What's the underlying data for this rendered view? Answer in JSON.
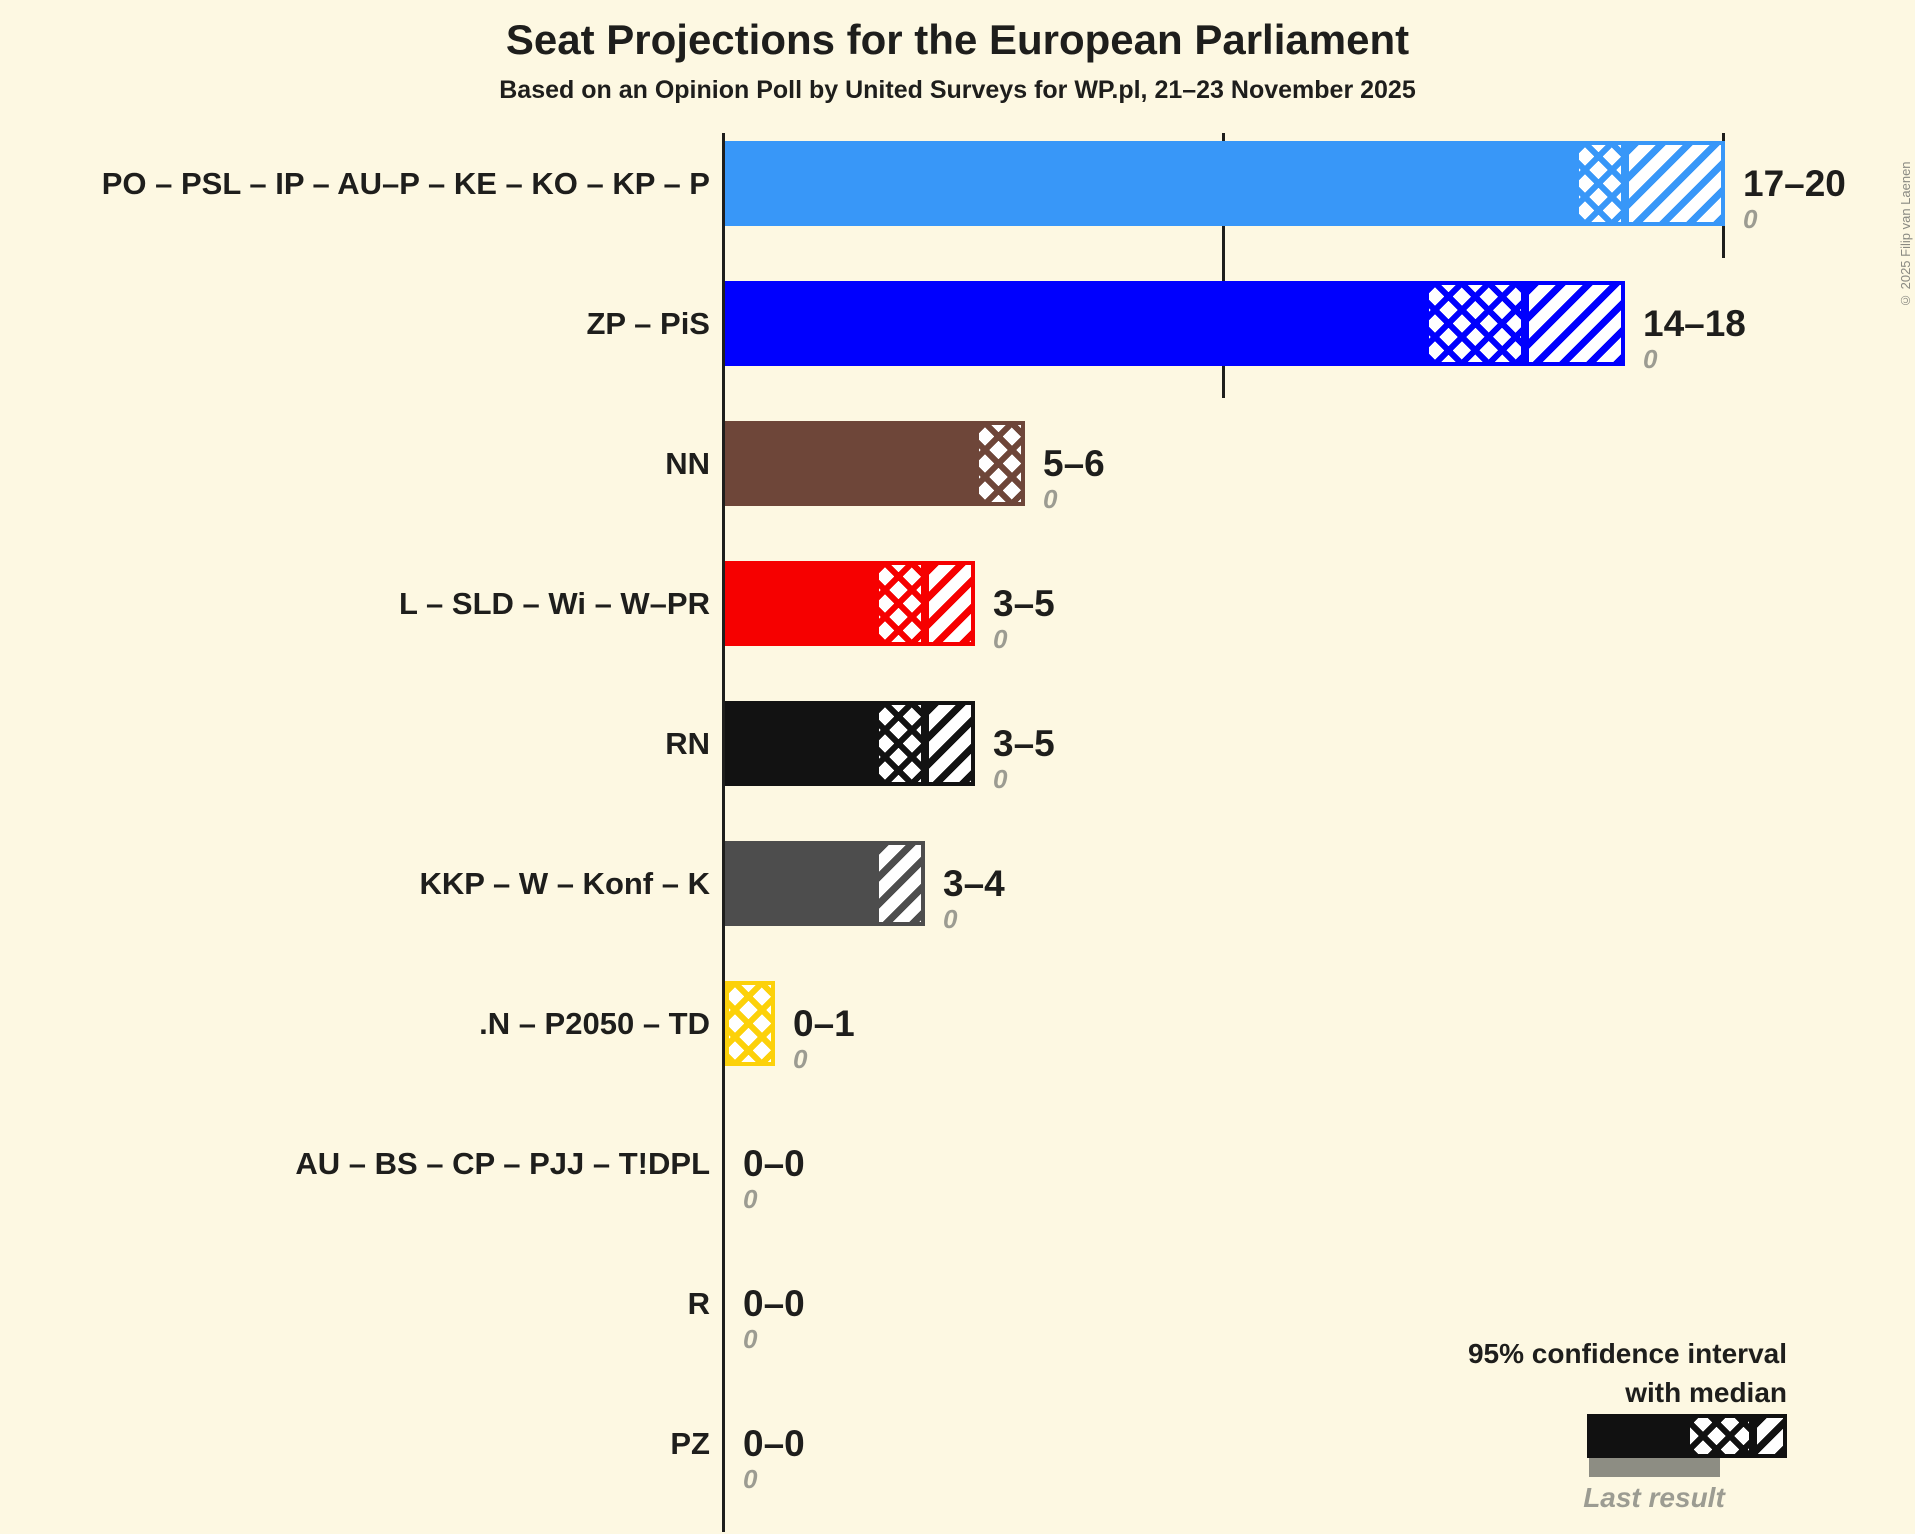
{
  "title": "Seat Projections for the European Parliament",
  "subtitle": "Based on an Opinion Poll by United Surveys for WP.pl, 21–23 November 2025",
  "copyright": "© 2025 Filip van Laenen",
  "legend": {
    "line1": "95% confidence interval",
    "line2": "with median",
    "last_result": "Last result"
  },
  "colors": {
    "background": "#fdf8e2",
    "text": "#1e1e1c",
    "muted_text": "#9c9c92",
    "last_result_bar": "#8d8d83",
    "axis": "#1e1e1c",
    "legend_sample": "#111111"
  },
  "chart_data": {
    "type": "bar",
    "orientation": "horizontal",
    "title": "Seat Projections for the European Parliament",
    "subtitle": "Based on an Opinion Poll by United Surveys for WP.pl, 21–23 November 2025",
    "unit": "seats",
    "x_axis": {
      "min": 0,
      "max": 20,
      "ticks": [
        {
          "value": 5,
          "style": "dotted"
        },
        {
          "value": 10,
          "style": "solid"
        },
        {
          "value": 15,
          "style": "dotted"
        },
        {
          "value": 20,
          "style": "solid"
        }
      ],
      "grid": "ticks only, no labels"
    },
    "legend_note": "solid = below 95% CI low, crosshatch = CI low to median, diagonal = median to CI high",
    "rows": [
      {
        "label": "PO – PSL – IP – AU–P – KE – KO – KP – P",
        "color": "#3897f8",
        "ci_low": 17,
        "median": 18,
        "ci_high": 20,
        "range_label": "17–20",
        "last_result": 0,
        "last_result_label": "0"
      },
      {
        "label": "ZP – PiS",
        "color": "#0000fe",
        "ci_low": 14,
        "median": 16,
        "ci_high": 18,
        "range_label": "14–18",
        "last_result": 0,
        "last_result_label": "0"
      },
      {
        "label": "NN",
        "color": "#6e4639",
        "ci_low": 5,
        "median": 6,
        "ci_high": 6,
        "range_label": "5–6",
        "last_result": 0,
        "last_result_label": "0"
      },
      {
        "label": "L – SLD – Wi – W–PR",
        "color": "#f60000",
        "ci_low": 3,
        "median": 4,
        "ci_high": 5,
        "range_label": "3–5",
        "last_result": 0,
        "last_result_label": "0"
      },
      {
        "label": "RN",
        "color": "#121212",
        "ci_low": 3,
        "median": 4,
        "ci_high": 5,
        "range_label": "3–5",
        "last_result": 0,
        "last_result_label": "0"
      },
      {
        "label": "KKP – W – Konf – K",
        "color": "#4d4d4d",
        "ci_low": 3,
        "median": 3,
        "ci_high": 4,
        "range_label": "3–4",
        "last_result": 0,
        "last_result_label": "0"
      },
      {
        "label": ".N – P2050 – TD",
        "color": "#fcd10a",
        "ci_low": 0,
        "median": 1,
        "ci_high": 1,
        "range_label": "0–1",
        "last_result": 0,
        "last_result_label": "0"
      },
      {
        "label": "AU – BS – CP – PJJ – T!DPL",
        "color": "#1e1e1c",
        "ci_low": 0,
        "median": 0,
        "ci_high": 0,
        "range_label": "0–0",
        "last_result": 0,
        "last_result_label": "0"
      },
      {
        "label": "R",
        "color": "#1e1e1c",
        "ci_low": 0,
        "median": 0,
        "ci_high": 0,
        "range_label": "0–0",
        "last_result": 0,
        "last_result_label": "0"
      },
      {
        "label": "PZ",
        "color": "#1e1e1c",
        "ci_low": 0,
        "median": 0,
        "ci_high": 0,
        "range_label": "0–0",
        "last_result": 0,
        "last_result_label": "0"
      }
    ]
  }
}
